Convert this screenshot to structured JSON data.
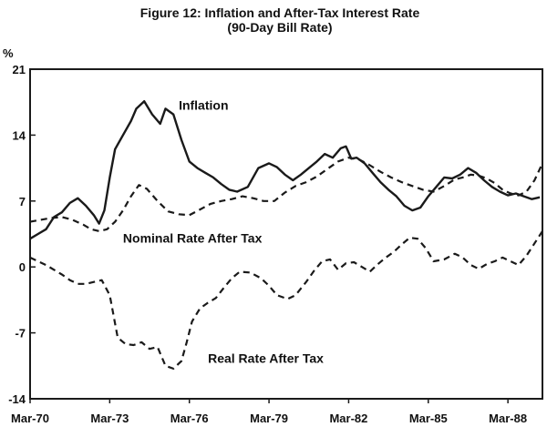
{
  "chart_data": {
    "type": "line",
    "title": "Figure 12: Inflation and After-Tax Interest Rate",
    "subtitle": "(90-Day Bill Rate)",
    "ylabel": "%",
    "ylim": [
      -14,
      21
    ],
    "yticks": [
      "21",
      "14",
      "7",
      "0",
      "-7",
      "-14"
    ],
    "xlim": [
      1970.0,
      1989.3
    ],
    "xticks": [
      {
        "label": "Mar-70",
        "x": 1970.0
      },
      {
        "label": "Mar-73",
        "x": 1973.0
      },
      {
        "label": "Mar-76",
        "x": 1976.0
      },
      {
        "label": "Mar-79",
        "x": 1979.0
      },
      {
        "label": "Mar-82",
        "x": 1982.0
      },
      {
        "label": "Mar-85",
        "x": 1985.0
      },
      {
        "label": "Mar-88",
        "x": 1988.0
      }
    ],
    "grid": false,
    "series": [
      {
        "name": "Inflation",
        "style": "solid",
        "x": [
          1970.0,
          1970.3,
          1970.6,
          1970.9,
          1971.2,
          1971.5,
          1971.8,
          1972.1,
          1972.4,
          1972.6,
          1972.8,
          1973.0,
          1973.2,
          1973.5,
          1973.8,
          1974.0,
          1974.3,
          1974.6,
          1974.9,
          1975.1,
          1975.4,
          1975.7,
          1976.0,
          1976.3,
          1976.6,
          1976.9,
          1977.2,
          1977.5,
          1977.8,
          1978.2,
          1978.6,
          1979.0,
          1979.3,
          1979.6,
          1979.9,
          1980.2,
          1980.5,
          1980.8,
          1981.1,
          1981.4,
          1981.7,
          1981.9,
          1982.1,
          1982.3,
          1982.6,
          1982.9,
          1983.2,
          1983.5,
          1983.8,
          1984.1,
          1984.4,
          1984.7,
          1985.0,
          1985.3,
          1985.6,
          1985.9,
          1986.2,
          1986.5,
          1986.8,
          1987.1,
          1987.4,
          1987.7,
          1988.0,
          1988.3,
          1988.6,
          1988.9,
          1989.2
        ],
        "values": [
          3.0,
          3.5,
          4.0,
          5.3,
          5.8,
          6.8,
          7.3,
          6.5,
          5.5,
          4.6,
          6.0,
          9.5,
          12.5,
          14.0,
          15.5,
          16.8,
          17.6,
          16.2,
          15.2,
          16.8,
          16.2,
          13.5,
          11.2,
          10.5,
          10.0,
          9.5,
          8.8,
          8.2,
          8.0,
          8.5,
          10.5,
          11.0,
          10.6,
          9.8,
          9.2,
          9.8,
          10.5,
          11.2,
          12.0,
          11.6,
          12.6,
          12.8,
          11.5,
          11.6,
          11.0,
          10.0,
          9.0,
          8.2,
          7.5,
          6.5,
          6.0,
          6.3,
          7.5,
          8.5,
          9.5,
          9.4,
          9.8,
          10.5,
          10.0,
          9.2,
          8.5,
          8.0,
          7.6,
          7.8,
          7.5,
          7.2,
          7.4
        ]
      },
      {
        "name": "Nominal Rate After Tax",
        "style": "dashed",
        "x": [
          1970.0,
          1970.4,
          1970.8,
          1971.2,
          1971.6,
          1972.0,
          1972.3,
          1972.6,
          1972.9,
          1973.2,
          1973.5,
          1973.8,
          1974.1,
          1974.4,
          1974.8,
          1975.2,
          1975.6,
          1976.0,
          1976.4,
          1976.8,
          1977.2,
          1977.6,
          1978.0,
          1978.4,
          1978.8,
          1979.2,
          1979.6,
          1980.0,
          1980.4,
          1980.8,
          1981.2,
          1981.6,
          1982.0,
          1982.4,
          1982.8,
          1983.2,
          1983.6,
          1984.0,
          1984.4,
          1984.8,
          1985.2,
          1985.6,
          1986.0,
          1986.3,
          1986.6,
          1986.9,
          1987.2,
          1987.5,
          1987.8,
          1988.1,
          1988.4,
          1988.7,
          1989.0,
          1989.3
        ],
        "values": [
          4.8,
          5.0,
          5.2,
          5.3,
          5.0,
          4.5,
          4.0,
          3.8,
          4.0,
          4.8,
          6.0,
          7.5,
          8.7,
          8.3,
          7.0,
          5.9,
          5.6,
          5.5,
          6.1,
          6.7,
          7.0,
          7.2,
          7.5,
          7.3,
          7.0,
          7.0,
          7.9,
          8.6,
          9.0,
          9.6,
          10.4,
          11.2,
          11.6,
          11.4,
          10.8,
          10.1,
          9.5,
          9.0,
          8.6,
          8.2,
          8.0,
          8.6,
          9.3,
          9.5,
          9.8,
          9.7,
          9.4,
          8.9,
          8.2,
          7.8,
          7.6,
          8.0,
          9.2,
          11.0
        ]
      },
      {
        "name": "Real Rate After Tax",
        "style": "dashed",
        "x": [
          1970.0,
          1970.3,
          1970.6,
          1970.9,
          1971.2,
          1971.5,
          1971.8,
          1972.1,
          1972.4,
          1972.7,
          1973.0,
          1973.3,
          1973.6,
          1973.9,
          1974.2,
          1974.5,
          1974.8,
          1975.1,
          1975.4,
          1975.7,
          1975.9,
          1976.1,
          1976.4,
          1976.7,
          1977.0,
          1977.3,
          1977.6,
          1977.9,
          1978.3,
          1978.7,
          1979.0,
          1979.3,
          1979.7,
          1980.0,
          1980.4,
          1980.7,
          1981.0,
          1981.3,
          1981.6,
          1981.9,
          1982.2,
          1982.5,
          1982.8,
          1983.1,
          1983.4,
          1983.7,
          1984.0,
          1984.3,
          1984.6,
          1984.9,
          1985.2,
          1985.6,
          1986.0,
          1986.3,
          1986.6,
          1986.9,
          1987.2,
          1987.5,
          1987.8,
          1988.1,
          1988.4,
          1988.7,
          1989.0,
          1989.3
        ],
        "values": [
          1.0,
          0.6,
          0.2,
          -0.3,
          -0.8,
          -1.4,
          -1.8,
          -1.8,
          -1.6,
          -1.4,
          -3.0,
          -7.5,
          -8.2,
          -8.3,
          -8.0,
          -8.7,
          -8.5,
          -10.5,
          -10.8,
          -10.0,
          -8.0,
          -5.8,
          -4.4,
          -3.8,
          -3.3,
          -2.2,
          -1.2,
          -0.5,
          -0.6,
          -1.2,
          -2.0,
          -3.0,
          -3.4,
          -3.0,
          -1.6,
          -0.4,
          0.6,
          0.8,
          -0.3,
          0.4,
          0.5,
          0.0,
          -0.5,
          0.3,
          1.0,
          1.6,
          2.4,
          3.1,
          3.0,
          2.0,
          0.6,
          0.8,
          1.4,
          1.0,
          0.2,
          -0.2,
          0.3,
          0.6,
          1.0,
          0.6,
          0.2,
          1.2,
          2.5,
          3.8
        ]
      }
    ],
    "annotations": [
      {
        "series": "Inflation",
        "text": "Inflation",
        "x": 1975.6,
        "y": 16.7
      },
      {
        "series": "Nominal Rate After Tax",
        "text": "Nominal Rate After Tax",
        "x": 1973.5,
        "y": 2.6
      },
      {
        "series": "Real Rate After Tax",
        "text": "Real Rate After Tax",
        "x": 1976.7,
        "y": -10.2
      }
    ],
    "colors": {
      "line": "#1a1a1a",
      "axis": "#1a1a1a",
      "background": "#ffffff"
    }
  }
}
